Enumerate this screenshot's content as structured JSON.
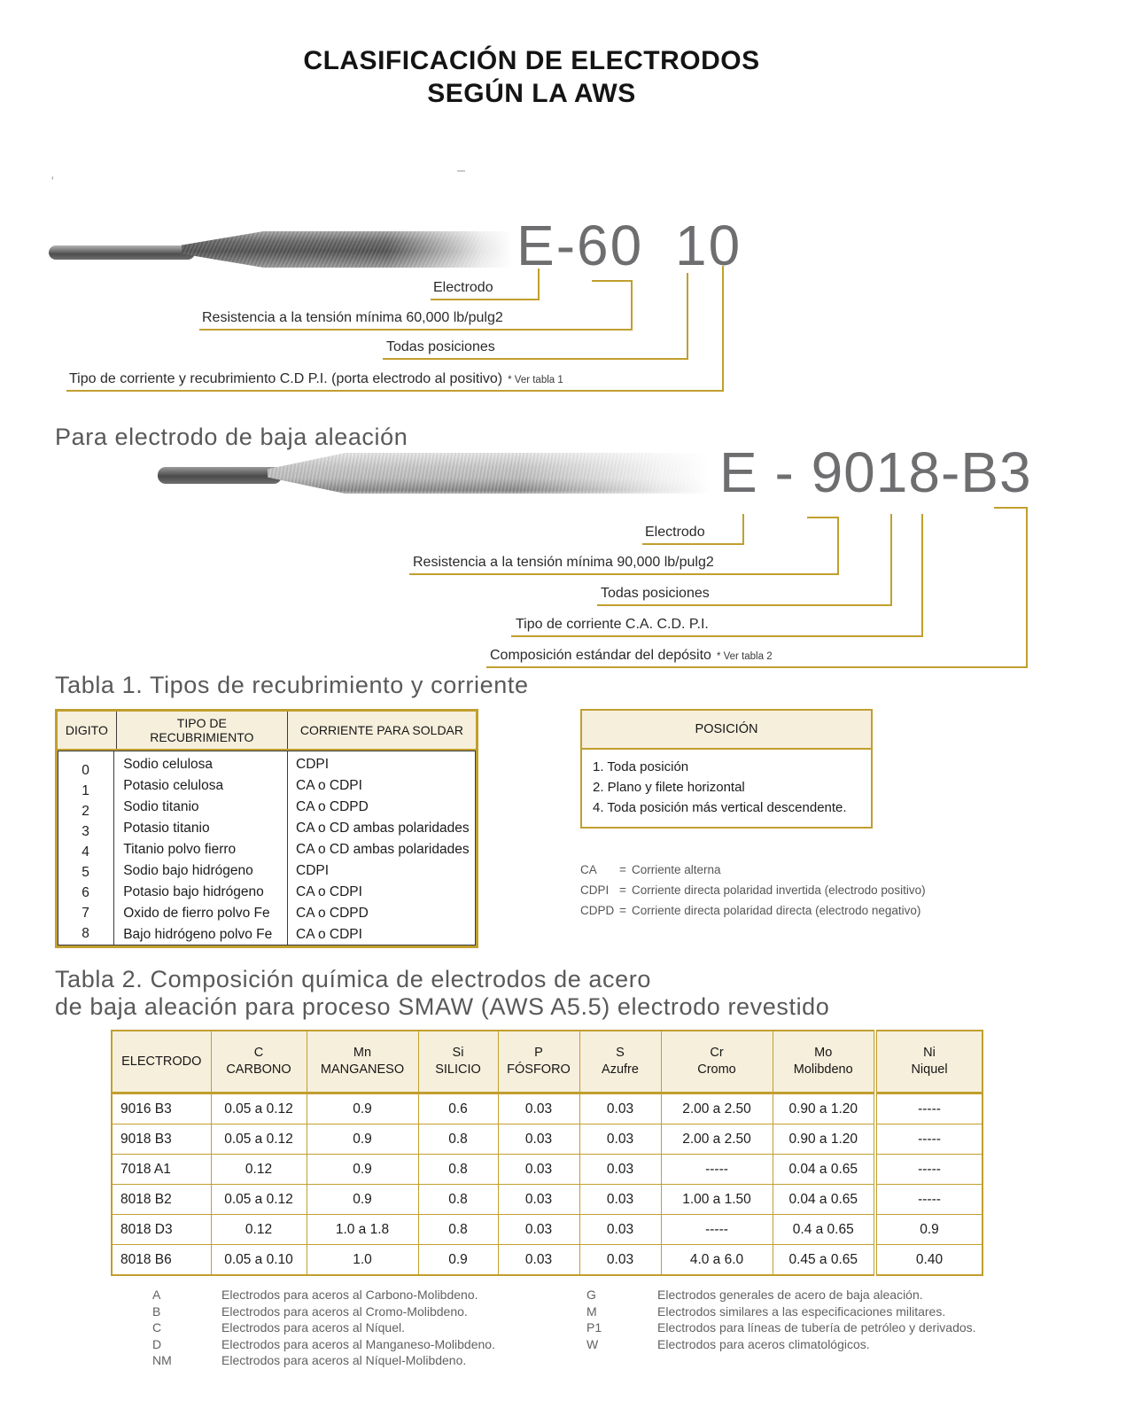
{
  "page": {
    "title_line1": "CLASIFICACIÓN DE ELECTRODOS",
    "title_line2": "SEGÚN LA AWS"
  },
  "colors": {
    "gold": "#C19F2E",
    "beige": "#F6EFDC",
    "label_gray": "#6e6e71",
    "heading_gray": "#59595b"
  },
  "diagram1": {
    "label": "E-60 10",
    "annotations": [
      {
        "text": "Electrodo",
        "note": ""
      },
      {
        "text": "Resistencia a la tensión mínima 60,000 lb/pulg2",
        "note": ""
      },
      {
        "text": "Todas posiciones",
        "note": ""
      },
      {
        "text": "Tipo de corriente y recubrimiento C.D P.I. (porta electrodo al positivo)",
        "note": "* Ver tabla 1"
      }
    ]
  },
  "section2_heading": "Para electrodo de baja aleación",
  "diagram2": {
    "label": "E - 9018-B3",
    "annotations": [
      {
        "text": "Electrodo",
        "note": ""
      },
      {
        "text": "Resistencia a la tensión mínima 90,000 lb/pulg2",
        "note": ""
      },
      {
        "text": "Todas posiciones",
        "note": ""
      },
      {
        "text": "Tipo de corriente C.A. C.D. P.I.",
        "note": ""
      },
      {
        "text": "Composición estándar del depósito",
        "note": "* Ver tabla 2"
      }
    ]
  },
  "table1": {
    "title": "Tabla 1. Tipos de recubrimiento y corriente",
    "headers": [
      "DIGITO",
      "TIPO DE RECUBRIMIENTO",
      "CORRIENTE PARA SOLDAR"
    ],
    "digits": [
      "0",
      "1",
      "2",
      "3",
      "4",
      "5",
      "6",
      "7",
      "8"
    ],
    "rows": [
      {
        "recubrimiento": "Sodio celulosa",
        "corriente": "CDPI"
      },
      {
        "recubrimiento": "Potasio celulosa",
        "corriente": "CA o CDPI"
      },
      {
        "recubrimiento": "Sodio titanio",
        "corriente": "CA o CDPD"
      },
      {
        "recubrimiento": "Potasio titanio",
        "corriente": "CA o CD ambas polaridades"
      },
      {
        "recubrimiento": "Titanio polvo fierro",
        "corriente": "CA o CD ambas polaridades"
      },
      {
        "recubrimiento": "Sodio bajo hidrógeno",
        "corriente": "CDPI"
      },
      {
        "recubrimiento": "Potasio bajo hidrógeno",
        "corriente": "CA o CDPI"
      },
      {
        "recubrimiento": "Oxido de fierro polvo Fe",
        "corriente": "CA o CDPD"
      },
      {
        "recubrimiento": "Bajo hidrógeno polvo Fe",
        "corriente": "CA o CDPI"
      }
    ]
  },
  "posicion_box": {
    "header": "POSICIÓN",
    "items": [
      "1. Toda posición",
      "2. Plano y filete horizontal",
      "4. Toda posición más vertical descendente."
    ]
  },
  "current_legend_eq": "=",
  "current_legend": [
    {
      "term": "CA",
      "definition": "Corriente alterna"
    },
    {
      "term": "CDPI",
      "definition": "Corriente directa polaridad invertida (electrodo positivo)"
    },
    {
      "term": "CDPD",
      "definition": "Corriente directa polaridad directa (electrodo negativo)"
    }
  ],
  "table2": {
    "title_line1": "Tabla 2. Composición química de electrodos de acero",
    "title_line2": "de baja aleación para proceso SMAW (AWS A5.5) electrodo revestido",
    "headers": [
      {
        "top": "ELECTRODO",
        "bottom": ""
      },
      {
        "top": "C",
        "bottom": "CARBONO"
      },
      {
        "top": "Mn",
        "bottom": "MANGANESO"
      },
      {
        "top": "Si",
        "bottom": "SILICIO"
      },
      {
        "top": "P",
        "bottom": "FÓSFORO"
      },
      {
        "top": "S",
        "bottom": "Azufre"
      },
      {
        "top": "Cr",
        "bottom": "Cromo"
      },
      {
        "top": "Mo",
        "bottom": "Molibdeno"
      },
      {
        "top": "Ni",
        "bottom": "Niquel"
      }
    ],
    "rows": [
      [
        "9016 B3",
        "0.05 a 0.12",
        "0.9",
        "0.6",
        "0.03",
        "0.03",
        "2.00 a 2.50",
        "0.90 a 1.20",
        "-----"
      ],
      [
        "9018 B3",
        "0.05 a 0.12",
        "0.9",
        "0.8",
        "0.03",
        "0.03",
        "2.00 a 2.50",
        "0.90 a 1.20",
        "-----"
      ],
      [
        "7018 A1",
        "0.12",
        "0.9",
        "0.8",
        "0.03",
        "0.03",
        "-----",
        "0.04 a 0.65",
        "-----"
      ],
      [
        "8018 B2",
        "0.05 a 0.12",
        "0.9",
        "0.8",
        "0.03",
        "0.03",
        "1.00 a 1.50",
        "0.04 a 0.65",
        "-----"
      ],
      [
        "8018 D3",
        "0.12",
        "1.0 a 1.8",
        "0.8",
        "0.03",
        "0.03",
        "-----",
        "0.4 a 0.65",
        "0.9"
      ],
      [
        "8018 B6",
        "0.05 a 0.10",
        "1.0",
        "0.9",
        "0.03",
        "0.03",
        "4.0 a 6.0",
        "0.45 a 0.65",
        "0.40"
      ]
    ]
  },
  "suffix_legend_left": [
    {
      "term": "A",
      "definition": "Electrodos para aceros al Carbono-Molibdeno."
    },
    {
      "term": "B",
      "definition": "Electrodos para aceros al Cromo-Molibdeno."
    },
    {
      "term": "C",
      "definition": "Electrodos para aceros al Níquel."
    },
    {
      "term": "D",
      "definition": "Electrodos para aceros al Manganeso-Molibdeno."
    },
    {
      "term": "NM",
      "definition": "Electrodos para aceros al Níquel-Molibdeno."
    }
  ],
  "suffix_legend_right": [
    {
      "term": "G",
      "definition": "Electrodos generales de acero de baja aleación."
    },
    {
      "term": "M",
      "definition": "Electrodos similares a las especificaciones militares."
    },
    {
      "term": "P1",
      "definition": "Electrodos para líneas de tubería de petróleo y derivados."
    },
    {
      "term": "W",
      "definition": "Electrodos para aceros climatológicos."
    }
  ]
}
